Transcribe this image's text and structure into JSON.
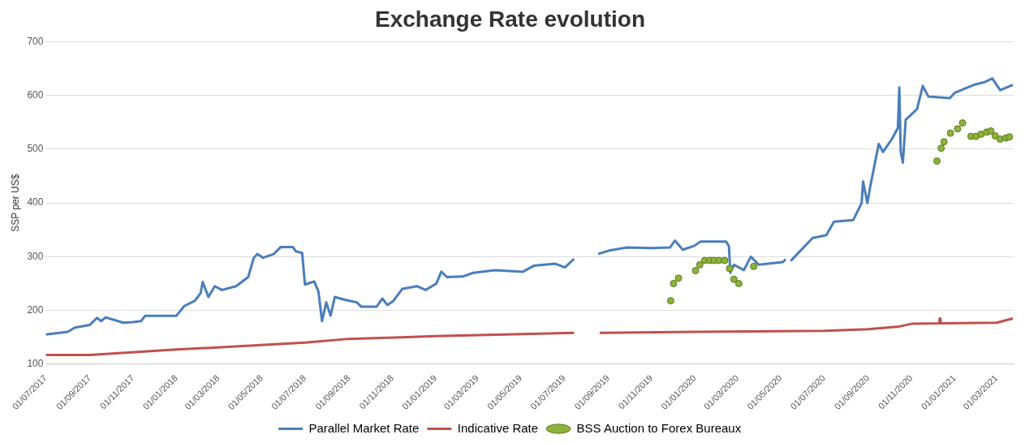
{
  "chart_data": {
    "type": "line",
    "title": "Exchange Rate evolution",
    "ylabel": "SSP per US$",
    "xlim": [
      "2017-07-01",
      "2021-03-25"
    ],
    "xticks": [
      {
        "value": "2017-07-01",
        "label": "01/07/2017"
      },
      {
        "value": "2017-09-01",
        "label": "01/09/2017"
      },
      {
        "value": "2017-11-01",
        "label": "01/11/2017"
      },
      {
        "value": "2018-01-01",
        "label": "01/01/2018"
      },
      {
        "value": "2018-03-01",
        "label": "01/03/2018"
      },
      {
        "value": "2018-05-01",
        "label": "01/05/2018"
      },
      {
        "value": "2018-07-01",
        "label": "01/07/2018"
      },
      {
        "value": "2018-09-01",
        "label": "01/09/2018"
      },
      {
        "value": "2018-11-01",
        "label": "01/11/2018"
      },
      {
        "value": "2019-01-01",
        "label": "01/01/2019"
      },
      {
        "value": "2019-03-01",
        "label": "01/03/2019"
      },
      {
        "value": "2019-05-01",
        "label": "01/05/2019"
      },
      {
        "value": "2019-07-01",
        "label": "01/07/2019"
      },
      {
        "value": "2019-09-01",
        "label": "01/09/2019"
      },
      {
        "value": "2019-11-01",
        "label": "01/11/2019"
      },
      {
        "value": "2020-01-01",
        "label": "01/01/2020"
      },
      {
        "value": "2020-03-01",
        "label": "01/03/2020"
      },
      {
        "value": "2020-05-01",
        "label": "01/05/2020"
      },
      {
        "value": "2020-07-01",
        "label": "01/07/2020"
      },
      {
        "value": "2020-09-01",
        "label": "01/09/2020"
      },
      {
        "value": "2020-11-01",
        "label": "01/11/2020"
      },
      {
        "value": "2021-01-01",
        "label": "01/01/2021"
      },
      {
        "value": "2021-03-01",
        "label": "01/03/2021"
      }
    ],
    "ylim": [
      100,
      700
    ],
    "yticks": [
      100,
      200,
      300,
      400,
      500,
      600,
      700
    ],
    "grid": "y",
    "legend": "bottom",
    "series": [
      {
        "name": "Parallel Market Rate",
        "color": "#4a7ebb",
        "marker": "none",
        "x": [
          "2017-07-01",
          "2017-08-01",
          "2017-08-11",
          "2017-09-01",
          "2017-09-11",
          "2017-09-17",
          "2017-09-23",
          "2017-10-06",
          "2017-10-18",
          "2017-11-01",
          "2017-11-12",
          "2017-11-18",
          "2018-01-01",
          "2018-01-12",
          "2018-01-27",
          "2018-02-04",
          "2018-02-07",
          "2018-02-15",
          "2018-02-24",
          "2018-03-06",
          "2018-03-26",
          "2018-04-12",
          "2018-04-20",
          "2018-04-25",
          "2018-05-03",
          "2018-05-18",
          "2018-05-28",
          "2018-06-14",
          "2018-06-18",
          "2018-06-27",
          "2018-07-01",
          "2018-07-14",
          "2018-07-20",
          "2018-07-25",
          "2018-07-31",
          "2018-08-06",
          "2018-08-12",
          "2018-08-25",
          "2018-09-12",
          "2018-09-18",
          "2018-10-10",
          "2018-10-18",
          "2018-10-25",
          "2018-11-02",
          "2018-11-15",
          "2018-12-06",
          "2018-12-18",
          "2019-01-02",
          "2019-01-09",
          "2019-01-17",
          "2019-02-08",
          "2019-02-23",
          "2019-03-26",
          "2019-05-04",
          "2019-05-19",
          "2019-06-18",
          "2019-07-02",
          "2019-07-15",
          "2019-08-01",
          "2019-08-18",
          "2019-09-04",
          "2019-09-28",
          "2019-11-01",
          "2019-11-27",
          "2019-12-04",
          "2019-12-15",
          "2019-12-31",
          "2020-01-09",
          "2020-02-14",
          "2020-02-18",
          "2020-02-20",
          "2020-02-25",
          "2020-03-10",
          "2020-03-20",
          "2020-03-31",
          "2020-05-04",
          "2020-05-08",
          "2020-05-11",
          "2020-05-15",
          "2020-06-15",
          "2020-07-04",
          "2020-07-15",
          "2020-08-11",
          "2020-08-23",
          "2020-08-25",
          "2020-08-31",
          "2020-09-04",
          "2020-09-16",
          "2020-09-22",
          "2020-10-05",
          "2020-10-13",
          "2020-10-15",
          "2020-10-17",
          "2020-10-20",
          "2020-10-24",
          "2020-11-09",
          "2020-11-17",
          "2020-11-25",
          "2020-12-25",
          "2021-01-01",
          "2021-01-28",
          "2021-02-12",
          "2021-02-23",
          "2021-03-06",
          "2021-03-24"
        ],
        "values": [
          155,
          160,
          168,
          173,
          186,
          180,
          187,
          182,
          177,
          178,
          180,
          190,
          190,
          208,
          218,
          232,
          253,
          225,
          245,
          238,
          245,
          262,
          298,
          305,
          298,
          305,
          318,
          318,
          310,
          307,
          248,
          254,
          235,
          180,
          215,
          190,
          225,
          220,
          215,
          207,
          207,
          222,
          210,
          217,
          240,
          245,
          238,
          250,
          272,
          262,
          263,
          270,
          275,
          272,
          283,
          287,
          280,
          296,
          null,
          305,
          312,
          317,
          316,
          317,
          330,
          313,
          320,
          328,
          328,
          320,
          270,
          285,
          275,
          300,
          285,
          290,
          295,
          null,
          292,
          335,
          340,
          365,
          368,
          400,
          440,
          400,
          430,
          510,
          495,
          520,
          540,
          615,
          495,
          475,
          555,
          575,
          618,
          598,
          595,
          605,
          620,
          625,
          632,
          610,
          620
        ]
      },
      {
        "name": "Indicative Rate",
        "color": "#c0504d",
        "marker": "none",
        "x": [
          "2017-07-01",
          "2017-09-01",
          "2018-01-01",
          "2018-07-01",
          "2018-09-01",
          "2019-01-01",
          "2019-07-15",
          "2019-08-01",
          "2019-08-20",
          "2020-01-01",
          "2020-07-01",
          "2020-09-01",
          "2020-10-15",
          "2020-11-01",
          "2020-12-10",
          "2020-12-11",
          "2020-12-12",
          "2021-03-01",
          "2021-03-24"
        ],
        "values": [
          117,
          117,
          127,
          140,
          147,
          152,
          158,
          null,
          158,
          160,
          162,
          165,
          170,
          175,
          176,
          185,
          176,
          177,
          185
        ]
      },
      {
        "name": "BSS Auction to Forex Bureaux",
        "type": "scatter",
        "color": "#8db33a",
        "marker": "circle",
        "x": [
          "2019-11-28",
          "2019-12-02",
          "2019-12-09",
          "2020-01-02",
          "2020-01-08",
          "2020-01-15",
          "2020-01-22",
          "2020-01-28",
          "2020-02-04",
          "2020-02-12",
          "2020-02-19",
          "2020-02-25",
          "2020-03-03",
          "2020-03-24",
          "2020-12-07",
          "2020-12-13",
          "2020-12-17",
          "2020-12-26",
          "2021-01-05",
          "2021-01-12",
          "2021-01-24",
          "2021-01-31",
          "2021-02-07",
          "2021-02-15",
          "2021-02-21",
          "2021-02-27",
          "2021-03-06",
          "2021-03-14",
          "2021-03-19"
        ],
        "values": [
          218,
          250,
          260,
          274,
          285,
          293,
          293,
          293,
          293,
          293,
          278,
          258,
          250,
          282,
          478,
          502,
          514,
          530,
          538,
          549,
          524,
          524,
          528,
          532,
          534,
          525,
          519,
          521,
          523
        ]
      }
    ]
  }
}
